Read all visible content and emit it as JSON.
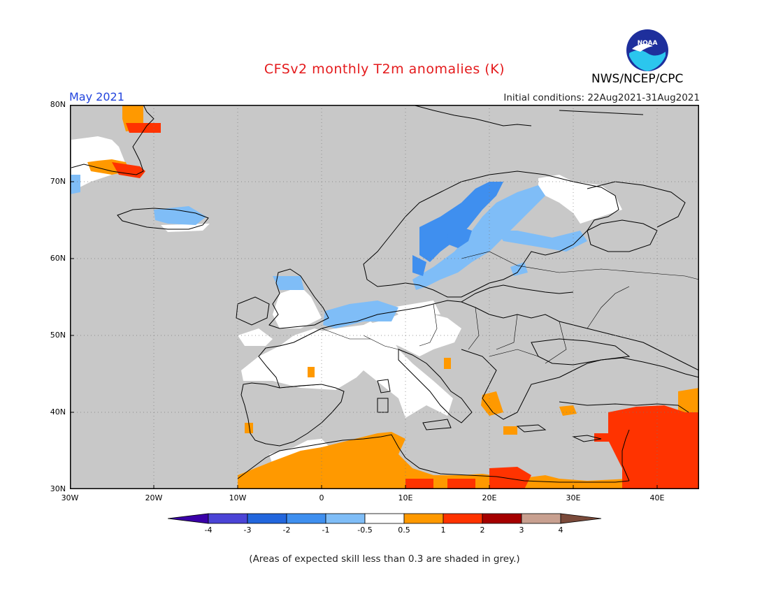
{
  "header": {
    "title": "CFSv2 monthly T2m anomalies (K)",
    "month": "May 2021",
    "initial_conditions": "Initial conditions: 22Aug2021-31Aug2021",
    "organization": "NWS/NCEP/CPC",
    "logo_text": "NOAA"
  },
  "map": {
    "region": "Europe",
    "lat_labels": [
      "80N",
      "70N",
      "60N",
      "50N",
      "40N",
      "30N"
    ],
    "lon_labels": [
      "30W",
      "20W",
      "10W",
      "0",
      "10E",
      "20E",
      "30E",
      "40E"
    ],
    "colors": {
      "background_grey": "#c8c8c8",
      "land_outline": "#000000",
      "grid": "#888888"
    },
    "regions": [
      {
        "name": "Iceland",
        "category": "-1"
      },
      {
        "name": "Scandinavia west coast",
        "category": "-1"
      },
      {
        "name": "Finland / NW Russia",
        "category": "-0.5"
      },
      {
        "name": "British Isles",
        "category": "-0.5 to 0.5"
      },
      {
        "name": "France / Iberia",
        "category": "-0.5 to 0.5"
      },
      {
        "name": "North Africa",
        "category": "0.5 to 1"
      },
      {
        "name": "Levant / Middle East",
        "category": "1 to 2"
      },
      {
        "name": "Greenland east coast",
        "category": "1 to 2"
      }
    ]
  },
  "colorbar": {
    "labels": [
      "-4",
      "-3",
      "-2",
      "-1",
      "-0.5",
      "0.5",
      "1",
      "2",
      "3",
      "4"
    ],
    "colors": [
      "#3a00a8",
      "#4b44d6",
      "#2266dd",
      "#3f8fef",
      "#7fbdf7",
      "#ffffff",
      "#ff9900",
      "#ff3300",
      "#a50000",
      "#c8a090",
      "#7a4a3a"
    ]
  },
  "footnote": "(Areas of expected skill less than 0.3 are shaded in grey.)"
}
